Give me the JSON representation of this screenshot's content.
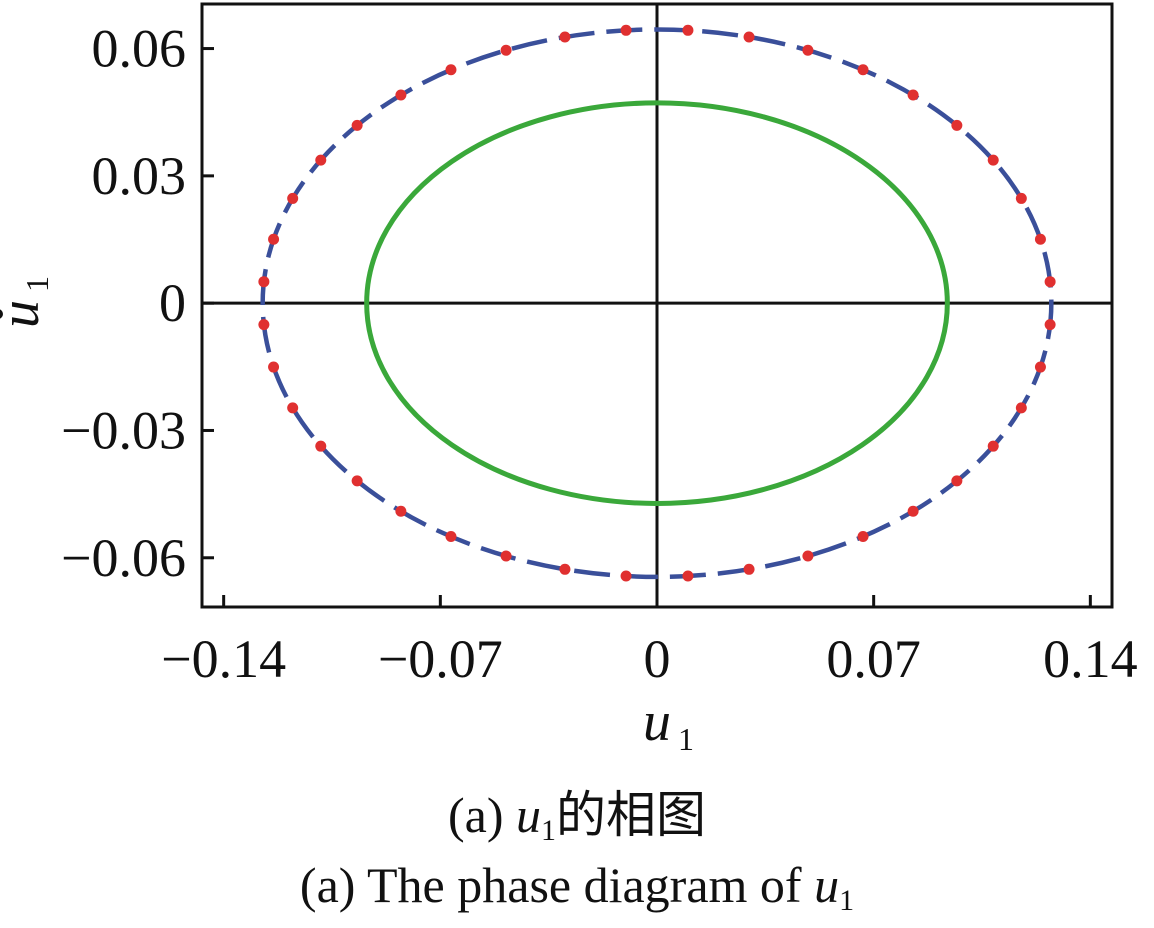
{
  "chart_data": {
    "type": "line",
    "xlabel": "u1",
    "ylabel": "u̇1",
    "xlim": [
      -0.147,
      0.147
    ],
    "ylim": [
      -0.0716,
      0.0705
    ],
    "x_ticks": [
      -0.14,
      -0.07,
      0,
      0.07,
      0.14
    ],
    "x_tick_labels": [
      "−0.14",
      "−0.07",
      "0",
      "0.07",
      "0.14"
    ],
    "y_ticks": [
      -0.06,
      -0.03,
      0,
      0.03,
      0.06
    ],
    "y_tick_labels": [
      "−0.06",
      "−0.03",
      "0",
      "0.03",
      "0.06"
    ],
    "grid": false,
    "zero_axes": true,
    "series": [
      {
        "style": "dashed",
        "color": "#3a4f9a",
        "shape": "ellipse",
        "center": [
          0,
          0
        ],
        "x_semi_axis": 0.1274,
        "y_semi_axis": 0.0645
      },
      {
        "style": "dotted-markers",
        "color": "#e03030",
        "shape": "ellipse",
        "center": [
          0,
          0
        ],
        "x_semi_axis": 0.1274,
        "y_semi_axis": 0.0645,
        "marker_count": 40
      },
      {
        "style": "solid",
        "color": "#3aa83a",
        "shape": "ellipse",
        "center": [
          0,
          0
        ],
        "x_semi_axis": 0.0938,
        "y_semi_axis": 0.0472
      }
    ]
  },
  "captions": {
    "zh_prefix": "(a) ",
    "zh_var": "u",
    "zh_sub": "1",
    "zh_suffix": "的相图",
    "en_prefix": "(a) The phase diagram of ",
    "en_var": "u",
    "en_sub": "1"
  }
}
